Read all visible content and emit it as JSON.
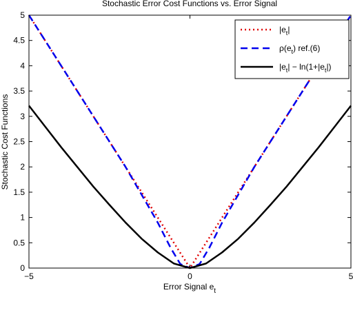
{
  "chart_data": {
    "type": "line",
    "title": "Stochastic Error Cost Functions vs. Error Signal",
    "xlabel": "Error Signal e",
    "xlabel_sub": "t",
    "ylabel": "Stochastic Cost Functions",
    "xlim": [
      -5,
      5
    ],
    "ylim": [
      0,
      5
    ],
    "xticks": [
      -5,
      0,
      5
    ],
    "xtick_labels": [
      "−5",
      "0",
      "5"
    ],
    "yticks": [
      0,
      0.5,
      1,
      1.5,
      2,
      2.5,
      3,
      3.5,
      4,
      4.5,
      5
    ],
    "ytick_labels": [
      "0",
      "0.5",
      "1",
      "1.5",
      "2",
      "2.5",
      "3",
      "3.5",
      "4",
      "4.5",
      "5"
    ],
    "grid": false,
    "legend_position": "top-right",
    "series": [
      {
        "legend_parts": [
          "|e",
          "t",
          "|"
        ],
        "color": "#e00000",
        "style": "dotted",
        "x": [
          -5,
          -4,
          -3,
          -2,
          -1,
          -0.5,
          0,
          0.5,
          1,
          2,
          3,
          4,
          5
        ],
        "y": [
          5,
          4,
          3,
          2,
          1,
          0.5,
          0,
          0.5,
          1,
          2,
          3,
          4,
          5
        ]
      },
      {
        "legend_parts": [
          "ρ(e",
          "t",
          ") ref.(6)"
        ],
        "color": "#0000ee",
        "style": "dashed",
        "x": [
          -5,
          -4,
          -3,
          -2,
          -1,
          -0.6,
          -0.3,
          0,
          0.3,
          0.6,
          1,
          2,
          3,
          4,
          5
        ],
        "y": [
          5,
          4,
          3,
          2,
          0.9,
          0.4,
          0.08,
          0,
          0.08,
          0.4,
          0.9,
          2,
          3,
          4,
          5
        ]
      },
      {
        "legend_parts": [
          "|e",
          "t",
          "| − ln(1+|e",
          "t",
          "|)"
        ],
        "color": "#000000",
        "style": "solid",
        "x": [
          -5,
          -4.5,
          -4,
          -3.5,
          -3,
          -2.5,
          -2,
          -1.5,
          -1,
          -0.5,
          0,
          0.5,
          1,
          1.5,
          2,
          2.5,
          3,
          3.5,
          4,
          4.5,
          5
        ],
        "y": [
          3.21,
          2.8,
          2.39,
          2.0,
          1.61,
          1.25,
          0.9,
          0.58,
          0.31,
          0.09,
          0,
          0.09,
          0.31,
          0.58,
          0.9,
          1.25,
          1.61,
          2.0,
          2.39,
          2.8,
          3.21
        ]
      }
    ]
  }
}
